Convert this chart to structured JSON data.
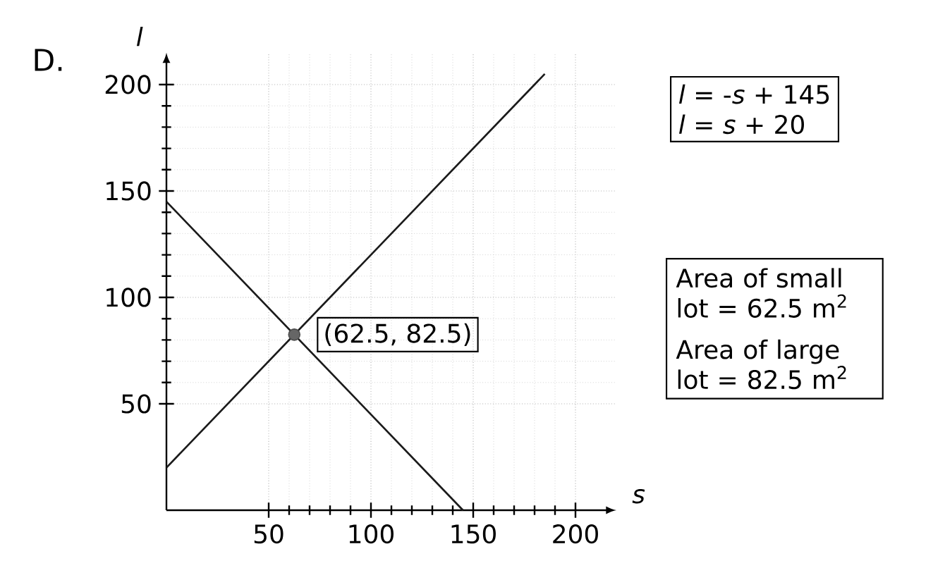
{
  "chart_data": {
    "type": "line",
    "xlabel": "s",
    "ylabel": "l",
    "xlim": [
      0,
      220
    ],
    "ylim": [
      0,
      215
    ],
    "xticks": [
      50,
      100,
      150,
      200
    ],
    "yticks": [
      50,
      100,
      150,
      200
    ],
    "grid": true,
    "line_style": "solid",
    "series": [
      {
        "x": [
          0,
          145
        ],
        "values": [
          145,
          0
        ],
        "color": "#1a1a1a"
      },
      {
        "x": [
          0,
          185
        ],
        "values": [
          20,
          205
        ],
        "color": "#1a1a1a"
      },
      {
        "type": "scatter",
        "marker": "circle",
        "x": [
          62.5
        ],
        "values": [
          82.5
        ],
        "color": "#666666"
      }
    ],
    "annotations": [
      "D.",
      {
        "text": "(62.5, 82.5)",
        "x": 62.5,
        "y": 82.5
      },
      "*l* = -*s* + 145",
      "*l* = *s* + 20",
      "Area of small lot = 62.5 m$^{2}$",
      "Area of large lot = 82.5 m$^{2}$"
    ]
  }
}
